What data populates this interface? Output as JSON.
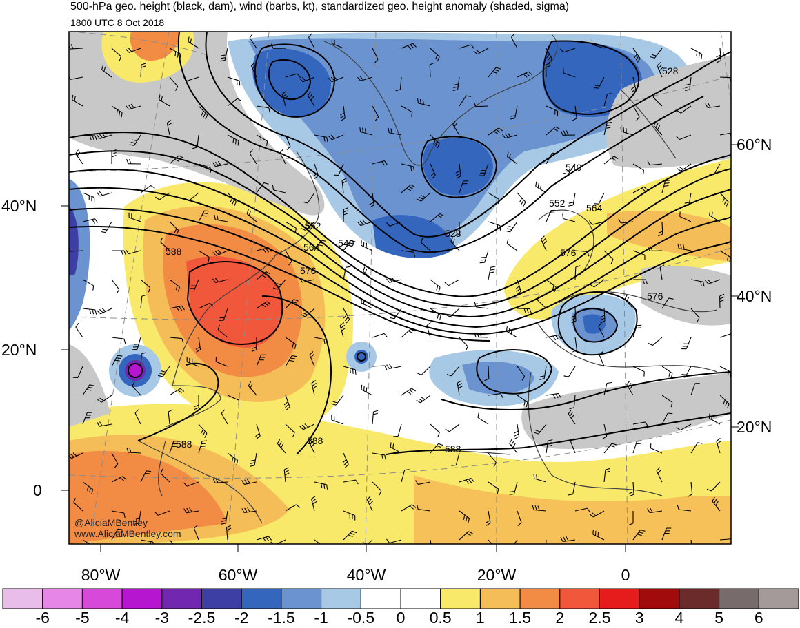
{
  "header": {
    "title": "500-hPa geo. height (black, dam), wind (barbs, kt), standardized geo. height anomaly (shaded, sigma)",
    "valid_time": "1800 UTC 8 Oct 2018"
  },
  "axes": {
    "lat_left": [
      "40°N",
      "20°N",
      "0"
    ],
    "lat_right": [
      "60°N",
      "40°N",
      "20°N"
    ],
    "lon_bottom": [
      "80°W",
      "60°W",
      "40°W",
      "20°W",
      "0"
    ]
  },
  "contour_labels": [
    "528",
    "540",
    "552",
    "564",
    "576",
    "588",
    "528",
    "540",
    "552",
    "564",
    "576",
    "588",
    "588",
    "588",
    "576"
  ],
  "credits": {
    "handle": "@AliciaMBentley",
    "site": "www.AliciaMBentley.com"
  },
  "colorbar": {
    "labels": [
      "-6",
      "-5",
      "-4",
      "-3",
      "-2.5",
      "-2",
      "-1.5",
      "-1",
      "-0.5",
      "0",
      "0.5",
      "1",
      "1.5",
      "2",
      "2.5",
      "3",
      "4",
      "5",
      "6"
    ],
    "colors": [
      "#e9bde9",
      "#e686e6",
      "#d74ad9",
      "#b616cf",
      "#7127b0",
      "#3d3fa4",
      "#3566be",
      "#6a93d0",
      "#a8c9e6",
      "#ffffff",
      "#ffffff",
      "#f8e96b",
      "#f5bd57",
      "#f28b44",
      "#f1573a",
      "#e61c1c",
      "#a10b0b",
      "#6b2b2b",
      "#776b6b",
      "#a49a9a"
    ]
  }
}
